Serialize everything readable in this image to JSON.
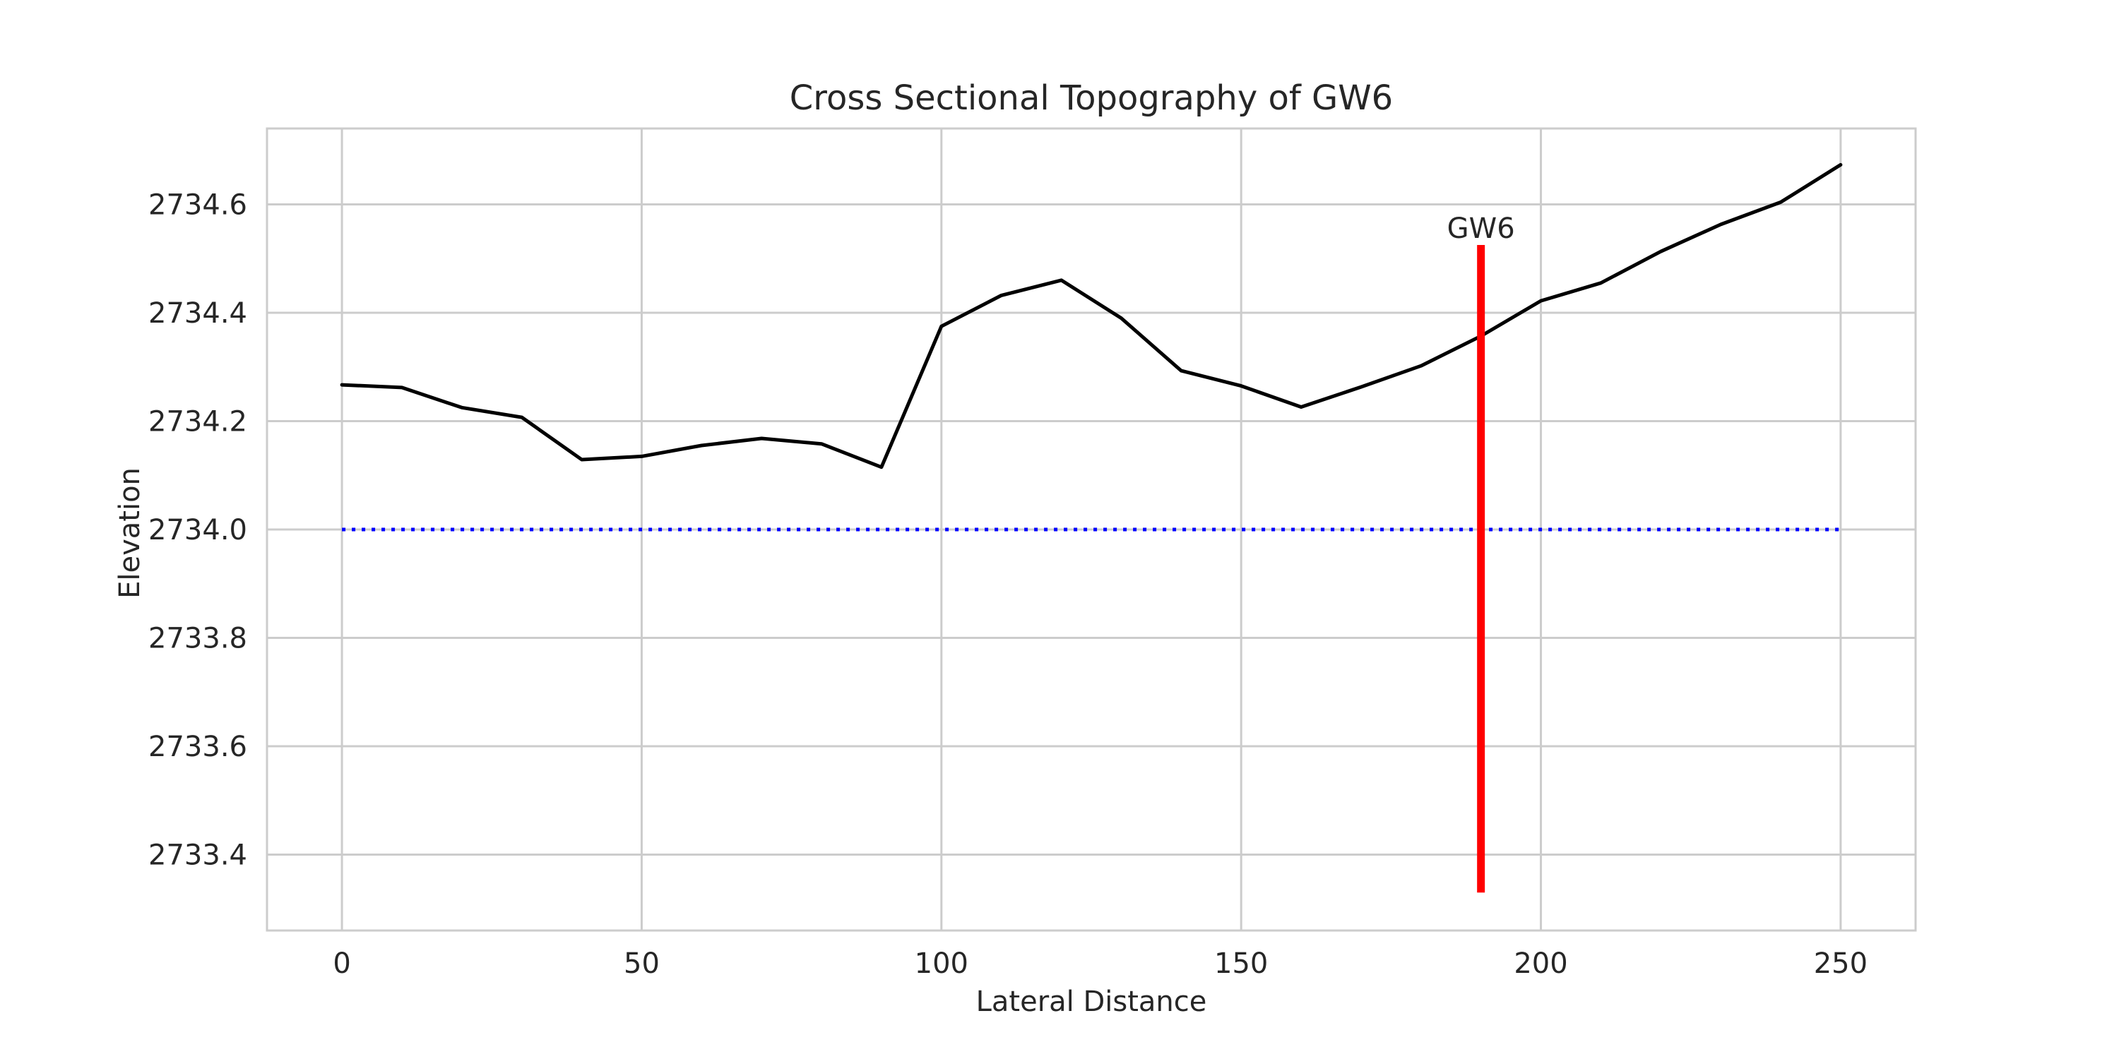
{
  "chart_data": {
    "type": "line",
    "title": "Cross Sectional Topography of GW6",
    "xlabel": "Lateral Distance",
    "ylabel": "Elevation",
    "xlim": [
      -12.5,
      262.5
    ],
    "ylim": [
      2733.26,
      2734.74
    ],
    "x_ticks": [
      0,
      50,
      100,
      150,
      200,
      250
    ],
    "x_tick_labels": [
      "0",
      "50",
      "100",
      "150",
      "200",
      "250"
    ],
    "y_ticks": [
      2733.4,
      2733.6,
      2733.8,
      2734.0,
      2734.2,
      2734.4,
      2734.6
    ],
    "y_tick_labels": [
      "2733.4",
      "2733.6",
      "2733.8",
      "2734.0",
      "2734.2",
      "2734.4",
      "2734.6"
    ],
    "grid": true,
    "series": [
      {
        "x": [
          0,
          10,
          20,
          30,
          40,
          50,
          60,
          70,
          80,
          90,
          100,
          110,
          120,
          130,
          140,
          150,
          160,
          170,
          180,
          190,
          200,
          210,
          220,
          230,
          240,
          250
        ],
        "values": [
          2734.267,
          2734.262,
          2734.225,
          2734.207,
          2734.129,
          2734.135,
          2734.155,
          2734.168,
          2734.158,
          2734.115,
          2734.375,
          2734.432,
          2734.46,
          2734.39,
          2734.293,
          2734.265,
          2734.226,
          2734.263,
          2734.302,
          2734.357,
          2734.422,
          2734.455,
          2734.513,
          2734.563,
          2734.604,
          2734.673
        ],
        "color": "#000000",
        "style": "solid"
      },
      {
        "x": [
          0,
          250
        ],
        "values": [
          2734.0,
          2734.0
        ],
        "color": "#0000ff",
        "style": "dotted"
      }
    ],
    "vertical_marker": {
      "x": 190,
      "y_bottom": 2733.33,
      "y_top": 2734.525,
      "color": "#ff0000"
    },
    "annotations": [
      {
        "text": "GW6",
        "x": 190,
        "y": 2734.525
      }
    ],
    "colors": {
      "grid": "#cccccc",
      "axes_border": "#cccccc",
      "text": "#262626"
    }
  }
}
